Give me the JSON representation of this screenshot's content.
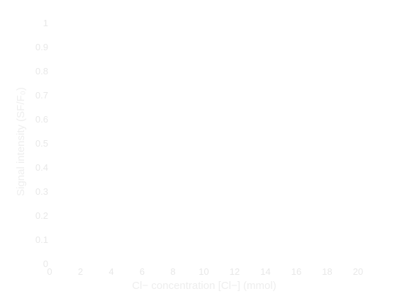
{
  "chart_data": {
    "type": "line",
    "title": "",
    "xlabel": "Cl− concentration [Cl−] (mmol)",
    "ylabel": "Signal intensity (SF/F₀)",
    "xlim": [
      0,
      20
    ],
    "ylim": [
      0,
      1
    ],
    "x_ticks": [
      "0",
      "2",
      "4",
      "6",
      "8",
      "10",
      "12",
      "14",
      "16",
      "18",
      "20"
    ],
    "y_ticks": [
      "0",
      "0.1",
      "0.2",
      "0.3",
      "0.4",
      "0.5",
      "0.6",
      "0.7",
      "0.8",
      "0.9",
      "1"
    ],
    "grid": false,
    "series": [],
    "colors": {
      "axis_text": "#eeeeee",
      "tick_text": "#e8e8e8",
      "background": "#ffffff"
    }
  }
}
